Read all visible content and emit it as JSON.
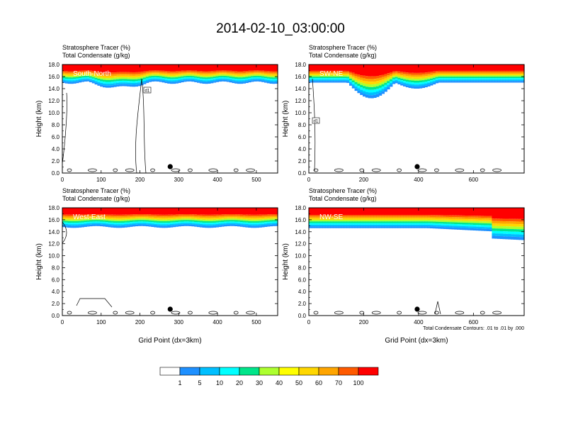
{
  "title": "2014-02-10_03:00:00",
  "chart_data": [
    {
      "type": "heatmap",
      "panel_label": "South-North",
      "header_lines": [
        "Stratosphere Tracer   (%)",
        "Total Condensate   (g/kg)"
      ],
      "ylabel": "Height (km)",
      "xlabel": "",
      "xlim": [
        0,
        555
      ],
      "ylim": [
        0,
        18
      ],
      "xticks": [
        0,
        100,
        200,
        300,
        400,
        500
      ],
      "yticks": [
        "0.0",
        "2.0",
        "4.0",
        "6.0",
        "8.0",
        "10.0",
        "12.0",
        "14.0",
        "16.0",
        "18.0"
      ],
      "marker_label": "d1",
      "marker_x": 278
    },
    {
      "type": "heatmap",
      "panel_label": "SW-NE",
      "header_lines": [
        "Stratosphere Tracer   (%)",
        "Total Condensate   (g/kg)"
      ],
      "ylabel": "Height (km)",
      "xlabel": "",
      "xlim": [
        0,
        785
      ],
      "ylim": [
        0,
        18
      ],
      "xticks": [
        0,
        200,
        400,
        600
      ],
      "yticks": [
        "0.0",
        "2.0",
        "4.0",
        "6.0",
        "8.0",
        "10.0",
        "12.0",
        "14.0",
        "16.0",
        "18.0"
      ],
      "marker_label": "d1",
      "marker_x": 395
    },
    {
      "type": "heatmap",
      "panel_label": "West-East",
      "header_lines": [
        "Stratosphere Tracer   (%)",
        "Total Condensate   (g/kg)"
      ],
      "ylabel": "Height (km)",
      "xlabel": "Grid Point (dx=3km)",
      "xlim": [
        0,
        555
      ],
      "ylim": [
        0,
        18
      ],
      "xticks": [
        0,
        100,
        200,
        300,
        400,
        500
      ],
      "yticks": [
        "0.0",
        "2.0",
        "4.0",
        "6.0",
        "8.0",
        "10.0",
        "12.0",
        "14.0",
        "16.0",
        "18.0"
      ],
      "marker_x": 278
    },
    {
      "type": "heatmap",
      "panel_label": "NW-SE",
      "header_lines": [
        "Stratosphere Tracer   (%)",
        "Total Condensate   (g/kg)"
      ],
      "ylabel": "Height (km)",
      "xlabel": "Grid Point (dx=3km)",
      "xlim": [
        0,
        785
      ],
      "ylim": [
        0,
        18
      ],
      "xticks": [
        0,
        200,
        400,
        600
      ],
      "yticks": [
        "0.0",
        "2.0",
        "4.0",
        "6.0",
        "8.0",
        "10.0",
        "12.0",
        "14.0",
        "16.0",
        "18.0"
      ],
      "marker_x": 395,
      "footnote": "Total Condensate Contours: .01 to .01 by .000"
    }
  ],
  "colorbar": {
    "labels": [
      "1",
      "5",
      "10",
      "20",
      "30",
      "40",
      "50",
      "60",
      "70",
      "100"
    ],
    "colors": [
      "#ffffff",
      "#1e90ff",
      "#00bfff",
      "#00ffff",
      "#00e58a",
      "#00ff00",
      "#adff2f",
      "#ffff00",
      "#ffd700",
      "#ffa500",
      "#ff5a00",
      "#ff0000"
    ]
  }
}
